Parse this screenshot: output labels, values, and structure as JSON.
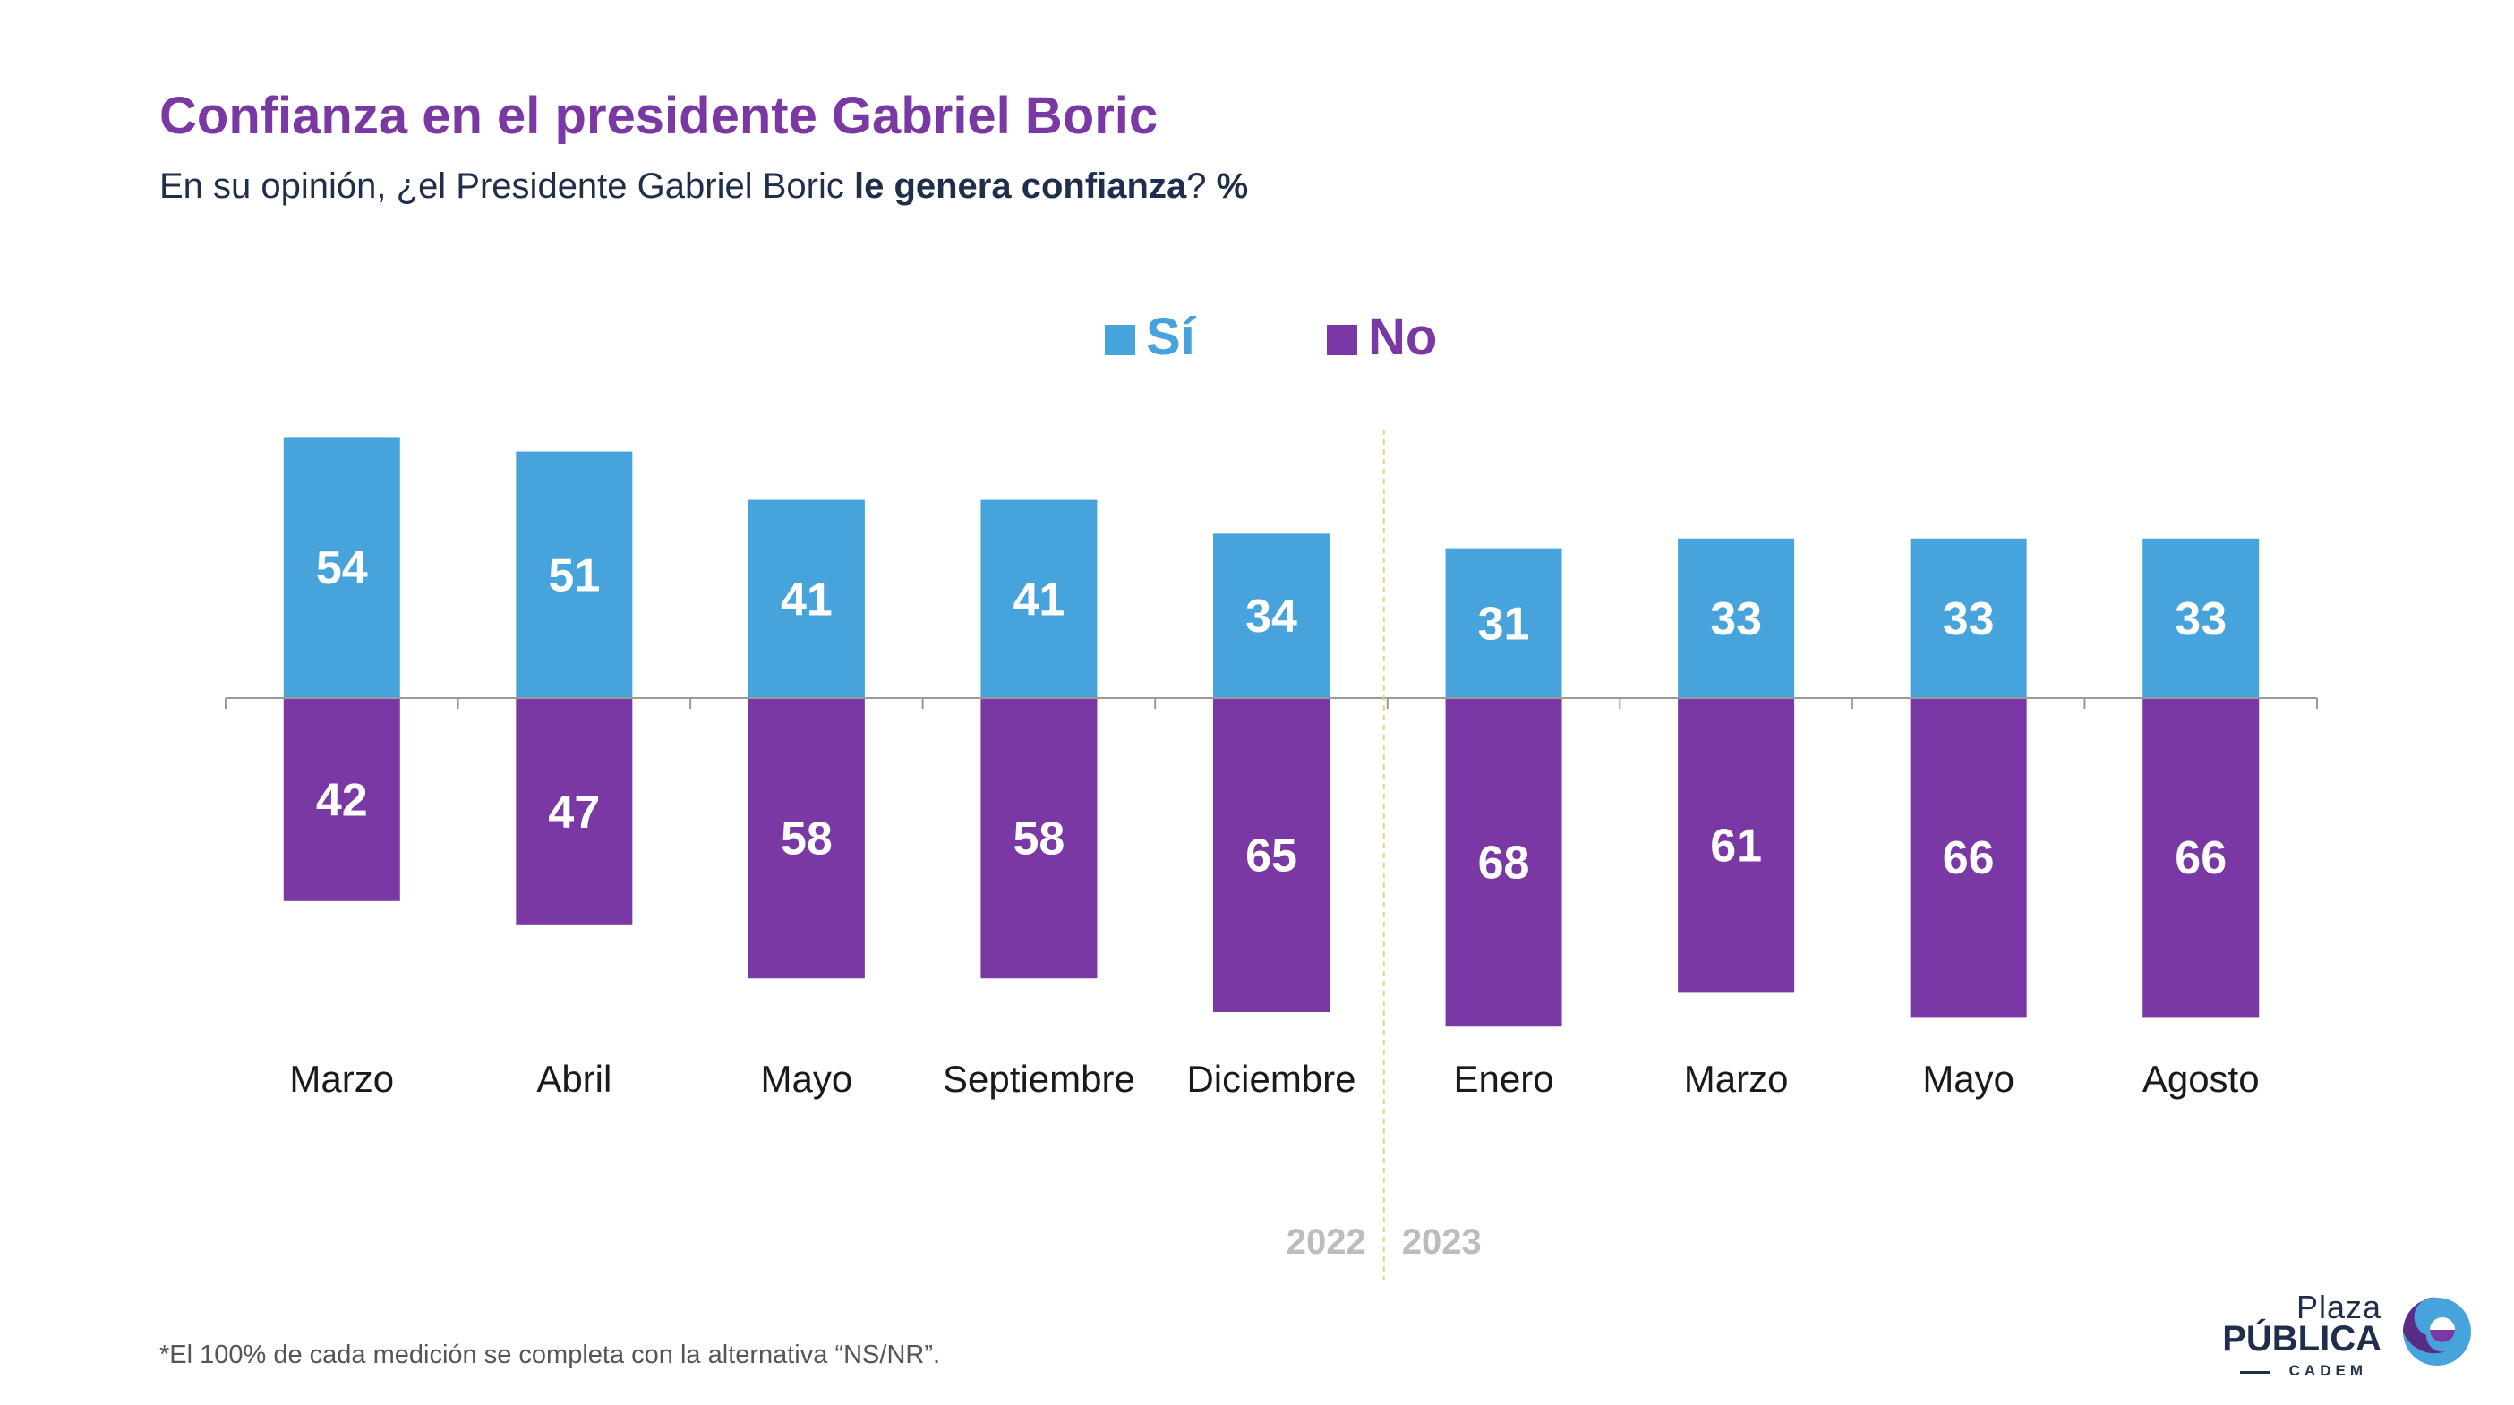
{
  "header": {
    "title": "Confianza en el presidente Gabriel Boric",
    "subtitle_pre": "En su opinión, ¿el Presidente Gabriel Boric ",
    "subtitle_bold": "le genera confianza",
    "subtitle_post": "? ",
    "subtitle_unit": "%"
  },
  "chart_data": {
    "type": "bar",
    "title": "Confianza en el presidente Gabriel Boric",
    "categories": [
      "Marzo",
      "Abril",
      "Mayo",
      "Septiembre",
      "Diciembre",
      "Enero",
      "Marzo",
      "Mayo",
      "Agosto"
    ],
    "series": [
      {
        "name": "Sí",
        "values": [
          54,
          51,
          41,
          41,
          34,
          31,
          33,
          33,
          33
        ]
      },
      {
        "name": "No",
        "values": [
          42,
          47,
          58,
          58,
          65,
          68,
          61,
          66,
          66
        ]
      }
    ],
    "years": [
      {
        "label": "2022",
        "from_index": 0,
        "to_index": 4
      },
      {
        "label": "2023",
        "from_index": 5,
        "to_index": 8
      }
    ],
    "legend_position": "top-center",
    "grid": false,
    "layout": "diverging"
  },
  "colors": {
    "si": "#46a3dc",
    "no": "#7a38a5",
    "title": "#7a38a5",
    "text": "#1f2f4b",
    "year": "#bcbcbc",
    "divider": "#e8d27a",
    "axis": "#9a9a9a"
  },
  "footnote": "*El 100% de cada medición se completa con la alternativa “NS/NR”.",
  "logo": {
    "line1": "Plaza",
    "line2": "PÚBLICA",
    "line3": "CADEM"
  }
}
